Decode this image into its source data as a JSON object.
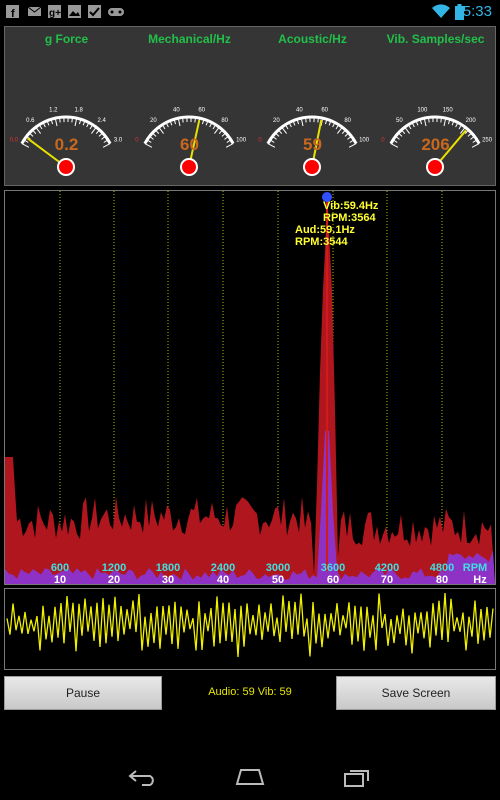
{
  "status_bar": {
    "time": "5:33",
    "left_icons": [
      "facebook-icon",
      "mail-icon",
      "google-plus-icon",
      "photo-icon",
      "checkbox-icon",
      "game-controller-icon"
    ],
    "right_icons": [
      "wifi-icon",
      "battery-icon"
    ]
  },
  "gauges": [
    {
      "title": "g Force",
      "value": "0.2",
      "ticks": [
        "0.0",
        "0.6",
        "1.2",
        "1.8",
        "2.4",
        "3.0"
      ],
      "needle_fraction": 0.07
    },
    {
      "title": "Mechanical/Hz",
      "value": "60",
      "ticks": [
        "0",
        "20",
        "40",
        "60",
        "80",
        "100"
      ],
      "needle_fraction": 0.6
    },
    {
      "title": "Acoustic/Hz",
      "value": "59",
      "ticks": [
        "0",
        "20",
        "40",
        "60",
        "80",
        "100"
      ],
      "needle_fraction": 0.59
    },
    {
      "title": "Vib. Samples/sec",
      "value": "206",
      "ticks": [
        "0",
        "50",
        "100",
        "150",
        "200",
        "250"
      ],
      "needle_fraction": 0.824
    }
  ],
  "spectrum": {
    "peak_vib": "Vib:59.4Hz",
    "peak_vib_rpm": "RPM:3564",
    "peak_aud": "Aud:59.1Hz",
    "peak_aud_rpm": "RPM:3544",
    "rpm_labels": [
      "600",
      "1200",
      "1800",
      "2400",
      "3000",
      "3600",
      "4200",
      "4800",
      "RPM"
    ],
    "hz_labels": [
      "10",
      "20",
      "30",
      "40",
      "50",
      "60",
      "70",
      "80",
      "Hz"
    ],
    "colors": {
      "vib": "#b0161d",
      "aud": "#8a35d8",
      "peak": "#d11a1a",
      "grid": "#b8b800",
      "rpm": "#40e0e0",
      "hz": "#ffffff"
    }
  },
  "controls": {
    "pause_label": "Pause",
    "save_label": "Save Screen",
    "readout": "Audio: 59 Vib: 59"
  },
  "nav_bar": {
    "icons": [
      "back-icon",
      "home-icon",
      "recent-apps-icon"
    ]
  },
  "colors": {
    "waveform": "#f0f000",
    "gauge_title": "#22c04a",
    "gauge_value": "#c8681e",
    "status_accent": "#33b5e5"
  }
}
